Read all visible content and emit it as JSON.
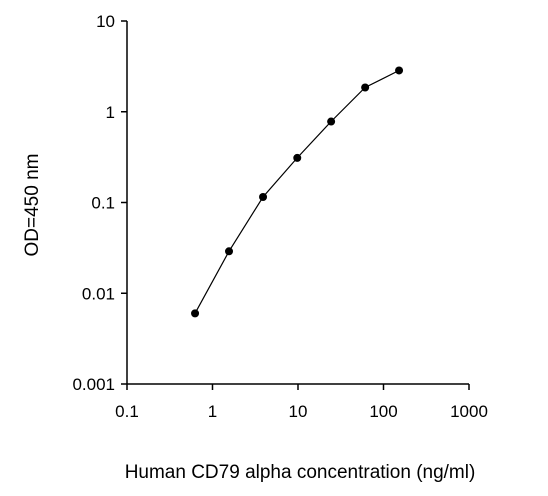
{
  "chart_data": {
    "type": "line",
    "title": "",
    "xlabel": "Human CD79 alpha concentration (ng/ml)",
    "ylabel": "OD=450 nm",
    "xscale": "log",
    "yscale": "log",
    "xlim": [
      0.1,
      1000
    ],
    "ylim": [
      0.001,
      10
    ],
    "xticks": [
      "0.1",
      "1",
      "10",
      "100",
      "1000"
    ],
    "yticks": [
      "0.001",
      "0.01",
      "0.1",
      "1",
      "10"
    ],
    "grid": false,
    "legend": "none",
    "series": [
      {
        "x": [
          0.625,
          1.56,
          3.9,
          9.8,
          24.4,
          61,
          152
        ],
        "y": [
          0.006,
          0.029,
          0.115,
          0.31,
          0.78,
          1.85,
          2.85
        ],
        "marker": "circle",
        "color": "#000000"
      }
    ]
  }
}
